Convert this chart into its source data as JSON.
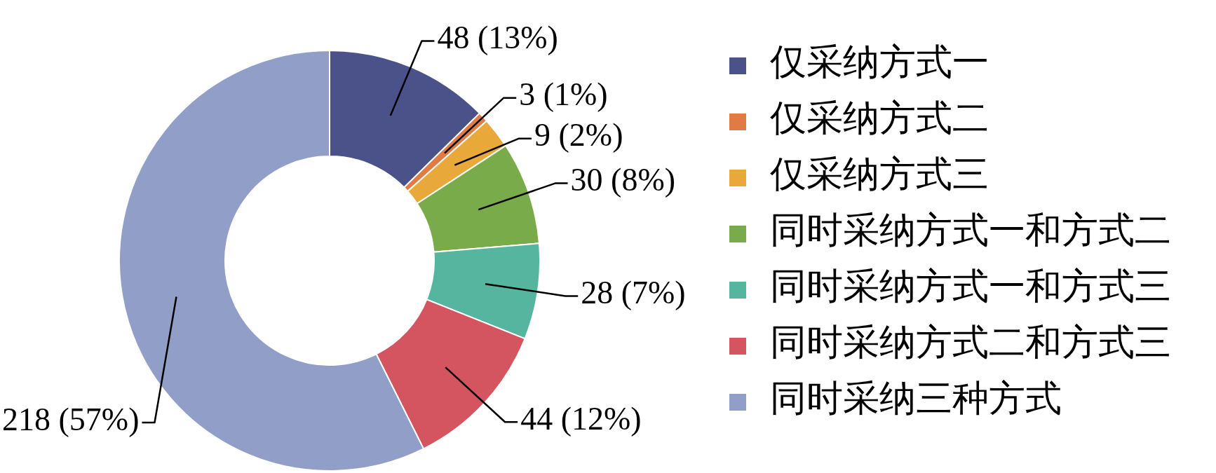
{
  "chart_data": {
    "type": "donut",
    "categories": [
      "仅采纳方式一",
      "仅采纳方式二",
      "仅采纳方式三",
      "同时采纳方式一和方式二",
      "同时采纳方式一和方式三",
      "同时采纳方式二和方式三",
      "同时采纳三种方式"
    ],
    "values": [
      48,
      3,
      9,
      30,
      28,
      44,
      218
    ],
    "colors": [
      "#4a5289",
      "#e07b45",
      "#e8a83a",
      "#7aab4a",
      "#56b59f",
      "#d45560",
      "#919fc8"
    ],
    "value_labels": [
      "48 (13%)",
      "3 (1%)",
      "9 (2%)",
      "30 (8%)",
      "28 (7%)",
      "44 (12%)",
      "218 (57%)"
    ],
    "legend": "right"
  }
}
